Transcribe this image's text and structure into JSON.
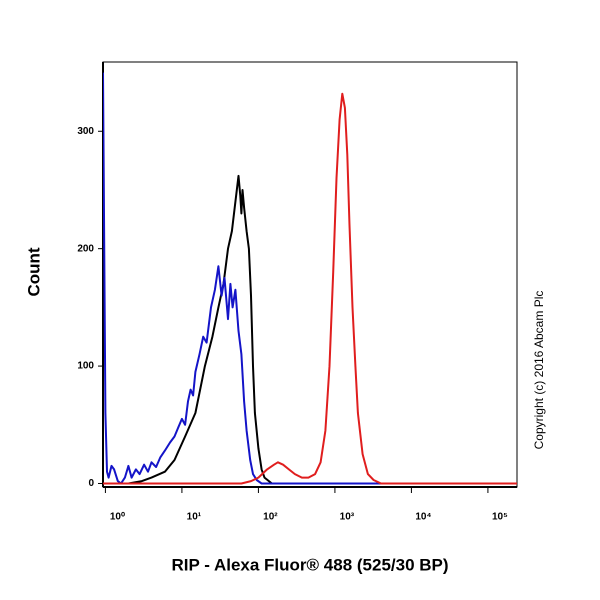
{
  "chart_data": {
    "type": "line",
    "x_label": "RIP - Alexa Fluor® 488 (525/30 BP)",
    "y_label": "Count",
    "annotation": "Copyright (c) 2016 Abcam Plc",
    "log_x": true,
    "grid": false,
    "xlim": [
      0.93,
      240000
    ],
    "ylim": [
      -3,
      359
    ],
    "xticks": [
      {
        "value": 1,
        "label": "10⁰"
      },
      {
        "value": 10,
        "label": "10¹"
      },
      {
        "value": 100,
        "label": "10²"
      },
      {
        "value": 1000,
        "label": "10³"
      },
      {
        "value": 10000,
        "label": "10⁴"
      },
      {
        "value": 100000,
        "label": "10⁵"
      }
    ],
    "yticks": [
      0,
      100,
      200,
      300
    ],
    "series": [
      {
        "name": "Black",
        "color": "#000000",
        "x": [
          0.93,
          2,
          3,
          4,
          6,
          8,
          11,
          15,
          20,
          25,
          30,
          35,
          40,
          45,
          50,
          55,
          58,
          60,
          62,
          65,
          70,
          75,
          80,
          85,
          90,
          100,
          110,
          120,
          150,
          240000
        ],
        "values": [
          0,
          0,
          2,
          5,
          10,
          20,
          40,
          60,
          100,
          125,
          150,
          170,
          200,
          215,
          240,
          262,
          245,
          230,
          250,
          235,
          215,
          200,
          160,
          100,
          60,
          30,
          12,
          5,
          0,
          0
        ]
      },
      {
        "name": "Blue",
        "color": "#1414c8",
        "x": [
          0.93,
          1.0,
          1.05,
          1.1,
          1.2,
          1.3,
          1.45,
          1.6,
          1.8,
          2.0,
          2.2,
          2.5,
          2.8,
          3.2,
          3.6,
          4.0,
          4.6,
          5.2,
          6,
          7,
          8,
          9,
          10,
          11,
          12,
          13,
          14,
          15,
          17,
          19,
          21,
          24,
          27,
          30,
          33,
          36,
          40,
          43,
          46,
          50,
          55,
          60,
          65,
          70,
          78,
          85,
          95,
          110,
          240000
        ],
        "values": [
          350,
          60,
          10,
          5,
          15,
          12,
          2,
          0,
          5,
          15,
          5,
          12,
          8,
          16,
          10,
          18,
          14,
          22,
          28,
          35,
          40,
          48,
          55,
          50,
          70,
          80,
          75,
          95,
          110,
          125,
          120,
          150,
          165,
          185,
          160,
          175,
          140,
          170,
          150,
          165,
          130,
          110,
          70,
          45,
          20,
          8,
          3,
          0,
          0
        ]
      },
      {
        "name": "Red",
        "color": "#e01e1e",
        "x": [
          0.93,
          60,
          80,
          100,
          130,
          160,
          180,
          210,
          250,
          300,
          370,
          450,
          550,
          650,
          750,
          850,
          950,
          1050,
          1150,
          1250,
          1350,
          1450,
          1550,
          1700,
          1850,
          2000,
          2300,
          2700,
          3200,
          4000,
          240000
        ],
        "values": [
          0,
          0,
          2,
          5,
          12,
          16,
          18,
          16,
          12,
          8,
          5,
          5,
          8,
          18,
          45,
          100,
          180,
          260,
          310,
          332,
          320,
          280,
          220,
          150,
          100,
          60,
          25,
          8,
          3,
          0,
          0
        ]
      }
    ]
  }
}
